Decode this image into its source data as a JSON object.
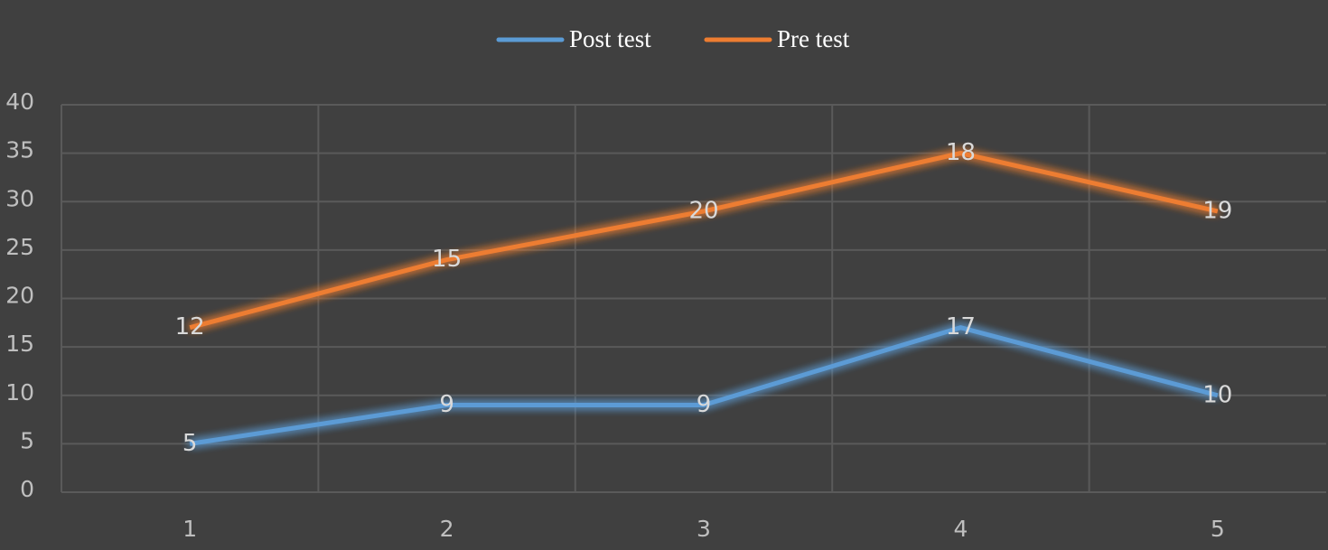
{
  "chart_data": {
    "type": "line",
    "stacked": true,
    "categories": [
      "1",
      "2",
      "3",
      "4",
      "5"
    ],
    "series": [
      {
        "name": "Post test",
        "color": "#5b9bd5",
        "values": [
          5,
          9,
          9,
          17,
          10
        ]
      },
      {
        "name": "Pre test",
        "color": "#ed7d31",
        "values": [
          12,
          15,
          20,
          18,
          19
        ]
      }
    ],
    "ylim": [
      0,
      40
    ],
    "yticks": [
      0,
      5,
      10,
      15,
      20,
      25,
      30,
      35,
      40
    ],
    "grid": true,
    "legend": "top"
  }
}
